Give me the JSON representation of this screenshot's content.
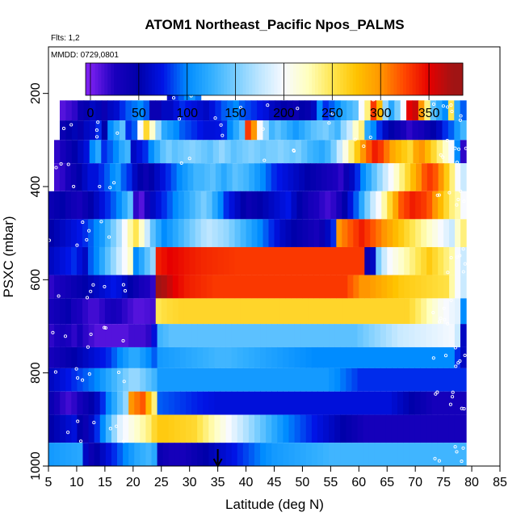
{
  "chart_data": {
    "type": "heatmap",
    "title": "ATOM1 Northeast_Pacific Npos_PALMS",
    "annotations": [
      "Flts: 1,2",
      "MMDD: 0729,0801"
    ],
    "xlabel": "Latitude (deg N)",
    "ylabel": "PSXC (mbar)",
    "xlim": [
      5,
      85
    ],
    "ylim": [
      1000,
      100
    ],
    "x_ticks": [
      5,
      10,
      15,
      20,
      25,
      30,
      35,
      40,
      45,
      50,
      55,
      60,
      65,
      70,
      75,
      80,
      85
    ],
    "x_tick_labels": [
      "5",
      "10",
      "15",
      "20",
      "25",
      "30",
      "35",
      "40",
      "45",
      "50",
      "55",
      "60",
      "65",
      "70",
      "75",
      "80",
      "85"
    ],
    "y_ticks": [
      200,
      400,
      600,
      800,
      1000
    ],
    "y_tick_labels": [
      "200",
      "400",
      "600",
      "800",
      "1000"
    ],
    "colorbar": {
      "range": [
        -5,
        385
      ],
      "ticks": [
        0,
        50,
        100,
        150,
        200,
        250,
        300,
        350
      ],
      "tick_labels": [
        "0",
        "50",
        "100",
        "150",
        "200",
        "250",
        "300",
        "350"
      ]
    },
    "marker": {
      "latitude": 35,
      "symbol": "down-arrow"
    },
    "lat_range": [
      5,
      79
    ],
    "bins": [
      {
        "pressure": [
          170,
          215
        ],
        "lat": [
          26,
          32
        ],
        "values": [
          60,
          80,
          90,
          100,
          110,
          95
        ]
      },
      {
        "pressure": [
          215,
          258
        ],
        "lat": [
          7,
          79
        ],
        "values": [
          10,
          15,
          20,
          40,
          45,
          60,
          55,
          40,
          60,
          65,
          80,
          90,
          95,
          100,
          90,
          40,
          40,
          60,
          60,
          70,
          80,
          75,
          70,
          65,
          60,
          70,
          80,
          90,
          95,
          100,
          90,
          85,
          80,
          75,
          70,
          60,
          55,
          50,
          45,
          40,
          50,
          45,
          60,
          100,
          80,
          90,
          100,
          120,
          130,
          140,
          200,
          240,
          330,
          280,
          160,
          120,
          150,
          200,
          350,
          360,
          300,
          240,
          140,
          120,
          100,
          250,
          120,
          90
        ]
      },
      {
        "pressure": [
          258,
          300
        ],
        "lat": [
          7,
          79
        ],
        "values": [
          40,
          50,
          55,
          45,
          60,
          65,
          80,
          50,
          100,
          120,
          140,
          80,
          90,
          200,
          260,
          220,
          160,
          120,
          110,
          100,
          90,
          85,
          80,
          75,
          70,
          70,
          72,
          80,
          100,
          120,
          140,
          330,
          300,
          200,
          160,
          130,
          140,
          130,
          120,
          110,
          120,
          130,
          140,
          145,
          150,
          140,
          130,
          160,
          180,
          220,
          240,
          120,
          100,
          80,
          60,
          50,
          40,
          30,
          20,
          25,
          30,
          40,
          50,
          60,
          80,
          90,
          110,
          130
        ]
      },
      {
        "pressure": [
          300,
          350
        ],
        "lat": [
          6,
          79
        ],
        "values": [
          20,
          30,
          40,
          50,
          60,
          70,
          100,
          120,
          80,
          90,
          100,
          120,
          130,
          60,
          70,
          80,
          100,
          120,
          140,
          150,
          140,
          145,
          150,
          155,
          150,
          145,
          140,
          150,
          160,
          150,
          140,
          145,
          150,
          155,
          150,
          145,
          150,
          150,
          155,
          150,
          145,
          150,
          140,
          130,
          125,
          120,
          130,
          150,
          180,
          210,
          240,
          270,
          300,
          320,
          340,
          330,
          310,
          290,
          280,
          270,
          260,
          290,
          300,
          280,
          260,
          240,
          220,
          200,
          100,
          20
        ]
      },
      {
        "pressure": [
          350,
          410
        ],
        "lat": [
          6,
          79
        ],
        "values": [
          15,
          20,
          30,
          40,
          50,
          60,
          70,
          70,
          80,
          90,
          100,
          110,
          90,
          80,
          60,
          50,
          40,
          50,
          60,
          70,
          80,
          90,
          100,
          110,
          120,
          130,
          130,
          135,
          140,
          130,
          120,
          130,
          140,
          135,
          130,
          120,
          110,
          100,
          90,
          80,
          75,
          70,
          65,
          60,
          55,
          50,
          45,
          40,
          35,
          30,
          25,
          20,
          40,
          60,
          80,
          100,
          120,
          140,
          160,
          180,
          200,
          220,
          240,
          260,
          280,
          300,
          320,
          330,
          320,
          300,
          270,
          240,
          200,
          180
        ]
      },
      {
        "pressure": [
          410,
          470
        ],
        "lat": [
          5,
          79
        ],
        "values": [
          40,
          45,
          50,
          40,
          35,
          30,
          40,
          50,
          60,
          70,
          80,
          90,
          100,
          120,
          140,
          20,
          10,
          30,
          60,
          70,
          80,
          90,
          100,
          110,
          120,
          130,
          140,
          150,
          140,
          120,
          100,
          80,
          70,
          60,
          50,
          40,
          45,
          50,
          55,
          60,
          65,
          70,
          75,
          60,
          50,
          40,
          30,
          25,
          20,
          15,
          20,
          30,
          50,
          70,
          90,
          120,
          150,
          180,
          200,
          230,
          260,
          290,
          320,
          330,
          340,
          335,
          330,
          320,
          300,
          280,
          260,
          240,
          230,
          200
        ]
      },
      {
        "pressure": [
          470,
          530
        ],
        "lat": [
          5,
          79
        ],
        "values": [
          50,
          55,
          60,
          65,
          70,
          75,
          80,
          90,
          100,
          110,
          130,
          150,
          170,
          200,
          230,
          250,
          220,
          180,
          140,
          120,
          100,
          110,
          120,
          130,
          140,
          150,
          160,
          170,
          175,
          170,
          165,
          160,
          150,
          140,
          130,
          120,
          110,
          100,
          90,
          80,
          70,
          60,
          55,
          50,
          45,
          40,
          35,
          30,
          40,
          60,
          80,
          300,
          310,
          320,
          330,
          340,
          330,
          320,
          310,
          300,
          290,
          280,
          270,
          260,
          250,
          240,
          230,
          220,
          210,
          200,
          190,
          180,
          220,
          240
        ]
      },
      {
        "pressure": [
          530,
          590
        ],
        "lat": [
          5,
          79
        ],
        "values": [
          60,
          65,
          70,
          75,
          80,
          70,
          60,
          90,
          100,
          120,
          140,
          160,
          180,
          200,
          220,
          100,
          120,
          140,
          160,
          340,
          345,
          350,
          348,
          345,
          342,
          340,
          338,
          336,
          335,
          334,
          333,
          332,
          331,
          330,
          330,
          330,
          330,
          330,
          330,
          330,
          330,
          330,
          330,
          330,
          330,
          330,
          330,
          330,
          330,
          330,
          330,
          330,
          330,
          330,
          330,
          330,
          40,
          60,
          150,
          180,
          200,
          210,
          220,
          230,
          240,
          250,
          260,
          270,
          260,
          250,
          240,
          230,
          200,
          180
        ]
      },
      {
        "pressure": [
          590,
          640
        ],
        "lat": [
          5,
          79
        ],
        "values": [
          20,
          25,
          30,
          35,
          40,
          45,
          50,
          55,
          60,
          65,
          70,
          75,
          70,
          60,
          50,
          40,
          30,
          25,
          20,
          380,
          370,
          360,
          350,
          345,
          340,
          338,
          336,
          334,
          332,
          330,
          330,
          330,
          330,
          330,
          330,
          330,
          330,
          330,
          330,
          330,
          330,
          330,
          330,
          330,
          330,
          330,
          330,
          330,
          330,
          330,
          330,
          330,
          330,
          320,
          310,
          300,
          300,
          295,
          290,
          285,
          280,
          275,
          270,
          268,
          266,
          264,
          262,
          260,
          258,
          256,
          254,
          230,
          200,
          180
        ]
      },
      {
        "pressure": [
          640,
          695
        ],
        "lat": [
          5,
          79
        ],
        "values": [
          30,
          35,
          40,
          45,
          30,
          25,
          20,
          15,
          15,
          20,
          25,
          30,
          25,
          20,
          15,
          10,
          10,
          12,
          15,
          250,
          255,
          258,
          260,
          262,
          262,
          262,
          262,
          262,
          262,
          262,
          262,
          262,
          262,
          262,
          262,
          262,
          262,
          262,
          262,
          262,
          262,
          262,
          262,
          262,
          262,
          262,
          262,
          262,
          262,
          262,
          262,
          262,
          262,
          262,
          262,
          262,
          262,
          262,
          262,
          262,
          262,
          262,
          262,
          262,
          255,
          245,
          235,
          225,
          215,
          205,
          200,
          195,
          190,
          100
        ]
      },
      {
        "pressure": [
          695,
          745
        ],
        "lat": [
          5,
          79
        ],
        "values": [
          20,
          25,
          30,
          25,
          20,
          30,
          20,
          15,
          10,
          10,
          10,
          10,
          10,
          10,
          15,
          15,
          15,
          20,
          70,
          130,
          135,
          140,
          140,
          140,
          140,
          140,
          140,
          140,
          140,
          140,
          140,
          140,
          140,
          140,
          140,
          140,
          140,
          140,
          140,
          140,
          140,
          140,
          140,
          140,
          140,
          140,
          140,
          140,
          140,
          140,
          140,
          140,
          140,
          140,
          145,
          150,
          155,
          160,
          165,
          170,
          175,
          180,
          182,
          184,
          186,
          188,
          190,
          192,
          194,
          196,
          198,
          180,
          60
        ]
      },
      {
        "pressure": [
          745,
          790
        ],
        "lat": [
          5,
          79
        ],
        "values": [
          30,
          35,
          40,
          45,
          50,
          55,
          60,
          65,
          70,
          75,
          80,
          90,
          100,
          110,
          120,
          120,
          110,
          100,
          90,
          110,
          112,
          114,
          116,
          118,
          120,
          122,
          124,
          126,
          128,
          130,
          130,
          130,
          128,
          126,
          124,
          122,
          120,
          118,
          116,
          114,
          112,
          110,
          108,
          106,
          104,
          102,
          100,
          100,
          100,
          100,
          100,
          100,
          100,
          100,
          100,
          100,
          100,
          100,
          100,
          100,
          100,
          100,
          100,
          100,
          100,
          100,
          100,
          100,
          100,
          100,
          100,
          80,
          60
        ]
      },
      {
        "pressure": [
          790,
          840
        ],
        "lat": [
          5,
          79
        ],
        "values": [
          60,
          65,
          70,
          75,
          80,
          85,
          90,
          95,
          100,
          110,
          120,
          130,
          140,
          150,
          160,
          160,
          150,
          140,
          130,
          110,
          110,
          110,
          110,
          110,
          110,
          110,
          110,
          110,
          110,
          110,
          110,
          110,
          110,
          110,
          110,
          110,
          110,
          110,
          110,
          110,
          110,
          110,
          110,
          110,
          110,
          110,
          110,
          110,
          110,
          105,
          100,
          95,
          90,
          85,
          80,
          80,
          80,
          80,
          80,
          80,
          80,
          80,
          80,
          80,
          80,
          80,
          80,
          80,
          80,
          80,
          80,
          80,
          80
        ]
      },
      {
        "pressure": [
          840,
          890
        ],
        "lat": [
          5,
          79
        ],
        "values": [
          40,
          30,
          20,
          15,
          20,
          30,
          40,
          50,
          60,
          80,
          100,
          120,
          140,
          160,
          300,
          310,
          320,
          280,
          240,
          90,
          88,
          86,
          84,
          82,
          80,
          78,
          76,
          74,
          72,
          70,
          70,
          70,
          70,
          70,
          70,
          70,
          70,
          70,
          70,
          70,
          70,
          70,
          70,
          70,
          70,
          70,
          70,
          70,
          70,
          70,
          70,
          70,
          70,
          70,
          70,
          70,
          70,
          70,
          70,
          70,
          65,
          60,
          55,
          50,
          45,
          40,
          35,
          30,
          30,
          30,
          30,
          30,
          30
        ]
      },
      {
        "pressure": [
          890,
          950
        ],
        "lat": [
          5,
          79
        ],
        "values": [
          50,
          55,
          60,
          65,
          70,
          50,
          40,
          60,
          80,
          100,
          130,
          160,
          190,
          200,
          210,
          220,
          230,
          240,
          260,
          270,
          270,
          268,
          266,
          264,
          262,
          260,
          250,
          240,
          230,
          220,
          210,
          200,
          190,
          180,
          170,
          160,
          150,
          140,
          130,
          120,
          110,
          100,
          95,
          90,
          85,
          80,
          75,
          70,
          65,
          60,
          55,
          50,
          45,
          40,
          35,
          30,
          30,
          30,
          30,
          30,
          30,
          30,
          30,
          30,
          30,
          30,
          30,
          30,
          30,
          30,
          30,
          30,
          30
        ]
      },
      {
        "pressure": [
          950,
          1005
        ],
        "lat": [
          5,
          79
        ],
        "values": [
          110,
          112,
          114,
          116,
          118,
          120,
          60,
          40,
          50,
          60,
          70,
          80,
          90,
          100,
          110,
          120,
          125,
          130,
          120,
          40,
          35,
          30,
          30,
          30,
          35,
          40,
          45,
          50,
          55,
          60,
          65,
          70,
          75,
          80,
          85,
          90,
          95,
          100,
          105,
          110,
          112,
          114,
          116,
          118,
          120,
          122,
          124,
          126,
          128,
          130,
          130,
          130,
          130,
          130,
          130,
          130,
          130,
          130,
          130,
          130,
          130,
          130,
          130,
          130,
          130,
          130,
          130,
          130,
          130,
          130,
          130,
          130,
          130
        ]
      }
    ]
  }
}
